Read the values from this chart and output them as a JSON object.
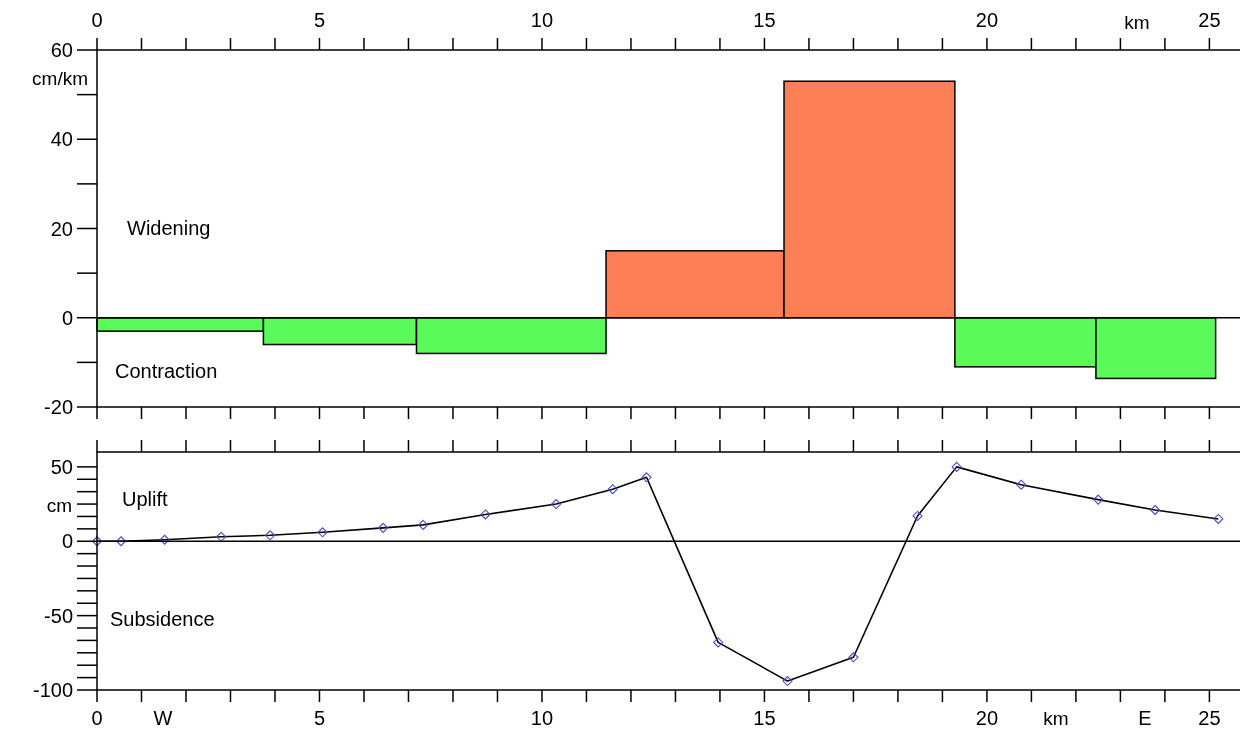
{
  "chart_data": [
    {
      "type": "histogram",
      "xlabel": "km",
      "ylabel": "cm/km",
      "bins": [
        0,
        3.74,
        7.18,
        11.44,
        15.44,
        19.28,
        22.45,
        25.14
      ],
      "values": [
        -3,
        -6,
        -8,
        15,
        53,
        -11,
        -13.6
      ],
      "colors": [
        "#5afa5a",
        "#5afa5a",
        "#5afa5a",
        "#fc7f55",
        "#fc7f55",
        "#5afa5a",
        "#5afa5a"
      ],
      "xlim": [
        0,
        25.8
      ],
      "ylim": [
        -20,
        60
      ],
      "xticks": [
        0,
        {
          "value": 1,
          "label": null
        },
        {
          "value": 2,
          "label": null
        },
        {
          "value": 3,
          "label": null
        },
        {
          "value": 4,
          "label": null
        },
        5,
        {
          "value": 6,
          "label": null
        },
        {
          "value": 7,
          "label": null
        },
        {
          "value": 8,
          "label": null
        },
        {
          "value": 9,
          "label": null
        },
        10,
        {
          "value": 11,
          "label": null
        },
        {
          "value": 12,
          "label": null
        },
        {
          "value": 13,
          "label": null
        },
        {
          "value": 14,
          "label": null
        },
        15,
        {
          "value": 16,
          "label": null
        },
        {
          "value": 17,
          "label": null
        },
        {
          "value": 18,
          "label": null
        },
        {
          "value": 19,
          "label": null
        },
        20,
        {
          "value": 21,
          "label": null
        },
        {
          "value": 22,
          "label": null
        },
        {
          "value": 23,
          "label": null
        },
        {
          "value": 24,
          "label": null
        },
        25
      ],
      "yticks": [
        -20,
        0,
        20,
        40,
        60
      ],
      "ref_lines": [
        {
          "axis": "y",
          "value": 0,
          "color": "#000000"
        }
      ],
      "annotations": [
        "Widening",
        "Contraction"
      ]
    },
    {
      "type": "line",
      "xlabel": "km",
      "ylabel": "cm",
      "marker": "diamond",
      "line_style": "solid",
      "series": [
        {
          "color": "#000000",
          "x": [
            0,
            0.54,
            1.52,
            2.79,
            3.89,
            5.07,
            6.43,
            7.33,
            8.73,
            10.32,
            11.59,
            12.35,
            13.96,
            15.52,
            17.0,
            18.44,
            19.32,
            20.77,
            22.5,
            23.78,
            25.2
          ],
          "values": [
            0,
            0,
            1,
            3,
            4,
            6,
            9,
            11,
            18,
            25,
            35,
            43,
            -68,
            -94,
            -78,
            17,
            50,
            38,
            28,
            21,
            15
          ]
        }
      ],
      "xlim": [
        0,
        25.8
      ],
      "ylim": [
        -100,
        60
      ],
      "xticks": [
        0,
        {
          "value": 1,
          "label": null
        },
        {
          "value": 2,
          "label": null
        },
        {
          "value": 3,
          "label": null
        },
        {
          "value": 4,
          "label": null
        },
        5,
        {
          "value": 6,
          "label": null
        },
        {
          "value": 7,
          "label": null
        },
        {
          "value": 8,
          "label": null
        },
        {
          "value": 9,
          "label": null
        },
        10,
        {
          "value": 11,
          "label": null
        },
        {
          "value": 12,
          "label": null
        },
        {
          "value": 13,
          "label": null
        },
        {
          "value": 14,
          "label": null
        },
        15,
        {
          "value": 16,
          "label": null
        },
        {
          "value": 17,
          "label": null
        },
        {
          "value": 18,
          "label": null
        },
        {
          "value": 19,
          "label": null
        },
        20,
        {
          "value": 21,
          "label": null
        },
        {
          "value": 22,
          "label": null
        },
        {
          "value": 23,
          "label": null
        },
        {
          "value": 24,
          "label": null
        },
        25
      ],
      "yticks": [
        -100,
        -50,
        0,
        50
      ],
      "ref_lines": [
        {
          "axis": "y",
          "value": 0,
          "color": "#000000"
        }
      ],
      "annotations": [
        "Uplift",
        "Subsidence",
        "W",
        "E"
      ]
    }
  ]
}
